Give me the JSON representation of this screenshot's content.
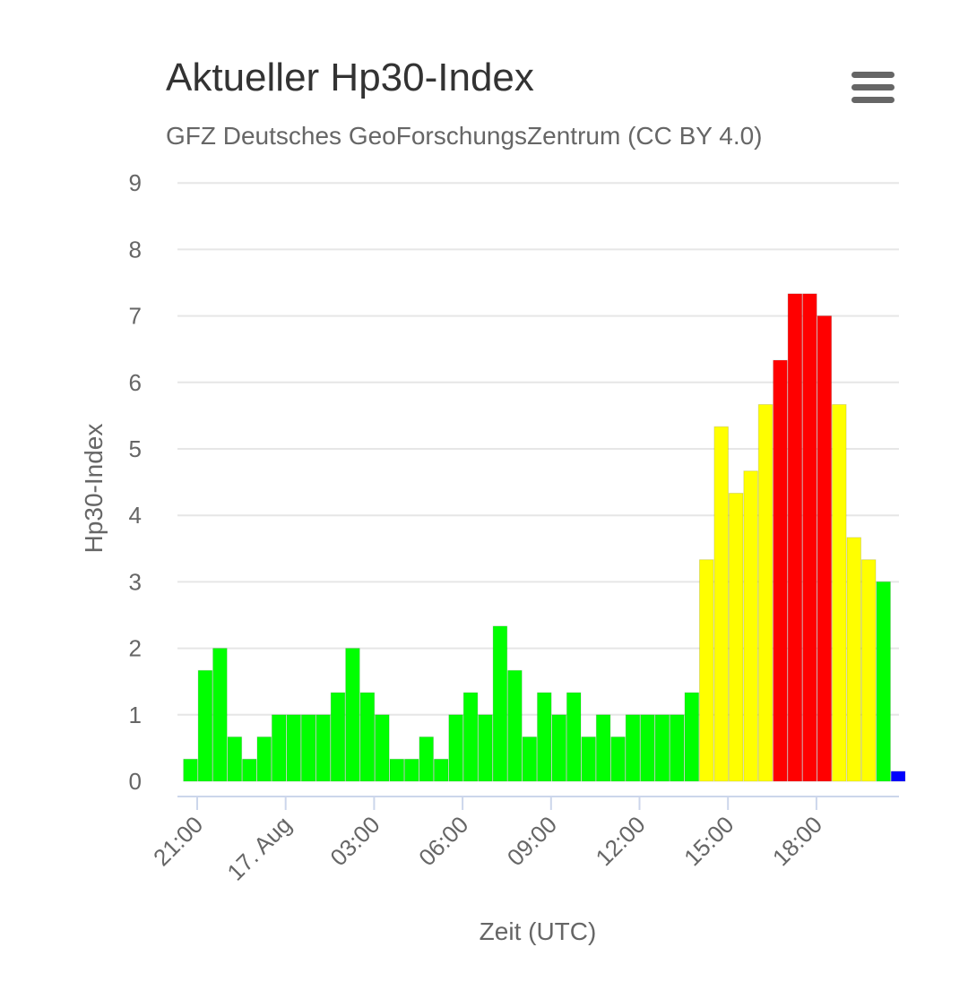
{
  "title": "Aktueller Hp30-Index",
  "subtitle": "GFZ Deutsches GeoForschungsZentrum (CC BY 4.0)",
  "menu_icon": "hamburger-menu-icon",
  "colors": {
    "low": "#00ff00",
    "moderate": "#ffff00",
    "high": "#ff0000",
    "current": "#0000ff"
  },
  "chart_data": {
    "type": "bar",
    "xlabel": "Zeit (UTC)",
    "ylabel": "Hp30-Index",
    "ylim": [
      0,
      9
    ],
    "y_ticks": [
      "0",
      "1",
      "2",
      "3",
      "4",
      "5",
      "6",
      "7",
      "8",
      "9"
    ],
    "x_tick_labels": [
      "21:00",
      "17. Aug",
      "03:00",
      "06:00",
      "09:00",
      "12:00",
      "15:00",
      "18:00"
    ],
    "grid": true,
    "legend": "none",
    "values": [
      0.333,
      1.667,
      2,
      0.667,
      0.333,
      0.667,
      1,
      1,
      1,
      1,
      1.333,
      2,
      1.333,
      1,
      0.333,
      0.333,
      0.667,
      0.333,
      1,
      1.333,
      1,
      2.333,
      1.667,
      0.667,
      1.333,
      1,
      1.333,
      0.667,
      1,
      0.667,
      1,
      1,
      1,
      1,
      1.333,
      3.333,
      5.333,
      4.333,
      4.667,
      5.667,
      6.333,
      7.333,
      7.333,
      7,
      5.667,
      3.667,
      3.333,
      3,
      0.15
    ],
    "bar_colors": [
      "low",
      "low",
      "low",
      "low",
      "low",
      "low",
      "low",
      "low",
      "low",
      "low",
      "low",
      "low",
      "low",
      "low",
      "low",
      "low",
      "low",
      "low",
      "low",
      "low",
      "low",
      "low",
      "low",
      "low",
      "low",
      "low",
      "low",
      "low",
      "low",
      "low",
      "low",
      "low",
      "low",
      "low",
      "low",
      "moderate",
      "moderate",
      "moderate",
      "moderate",
      "moderate",
      "high",
      "high",
      "high",
      "high",
      "moderate",
      "moderate",
      "moderate",
      "low",
      "current"
    ]
  }
}
